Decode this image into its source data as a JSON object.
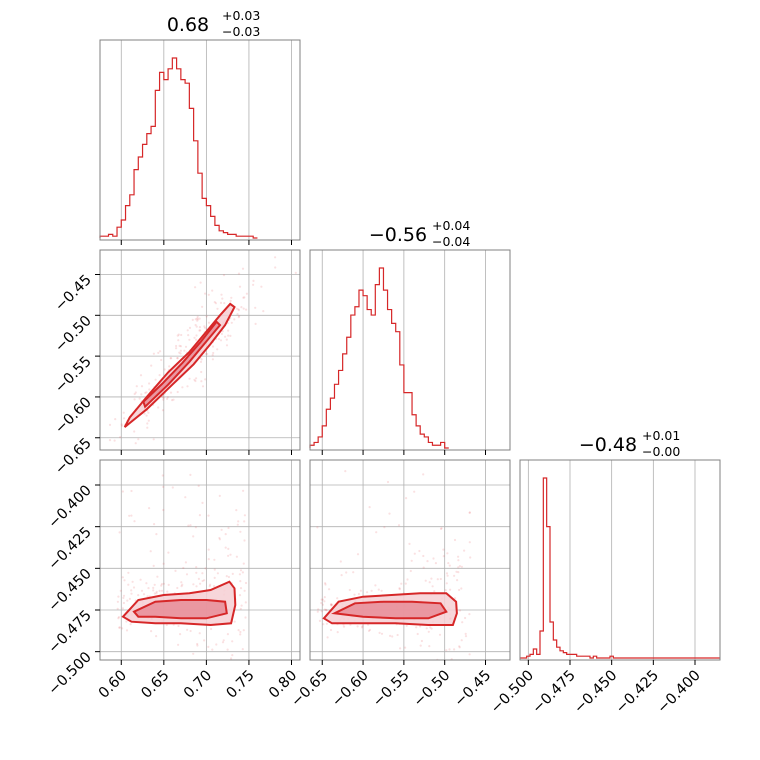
{
  "chart_data": {
    "type": "corner",
    "grid": true,
    "colors": {
      "line": "#d62728",
      "fill_inner": "#e8909a",
      "fill_outer": "#f6cfd4",
      "scatter": "#e3565f",
      "grid": "#b0b0b0",
      "frame": "#808080"
    },
    "parameters": [
      {
        "median": "0.68",
        "plus": "+0.03",
        "minus": "−0.03",
        "ticks": [
          0.6,
          0.65,
          0.7,
          0.75,
          0.8
        ],
        "tick_labels": [
          "0.60",
          "0.65",
          "0.70",
          "0.75",
          "0.80"
        ],
        "range": [
          0.575,
          0.81
        ]
      },
      {
        "median": "−0.56",
        "plus": "+0.04",
        "minus": "−0.04",
        "ticks": [
          -0.65,
          -0.6,
          -0.55,
          -0.5,
          -0.45
        ],
        "tick_labels": [
          "−0.65",
          "−0.60",
          "−0.55",
          "−0.50",
          "−0.45"
        ],
        "range": [
          -0.665,
          -0.42
        ]
      },
      {
        "median": "−0.48",
        "plus": "+0.01",
        "minus": "−0.00",
        "ticks": [
          -0.5,
          -0.475,
          -0.45,
          -0.425,
          -0.4
        ],
        "tick_labels": [
          "−0.500",
          "−0.475",
          "−0.450",
          "−0.425",
          "−0.400"
        ],
        "range": [
          -0.505,
          -0.385
        ]
      }
    ],
    "histograms": [
      {
        "param": 0,
        "edges_start": 0.575,
        "bin_width": 0.005,
        "counts": [
          1,
          1,
          2,
          1,
          6,
          10,
          18,
          24,
          38,
          45,
          52,
          58,
          62,
          82,
          92,
          88,
          94,
          100,
          94,
          88,
          86,
          72,
          54,
          36,
          22,
          18,
          12,
          7,
          4,
          3,
          2,
          2,
          1,
          1,
          1,
          1,
          0
        ]
      },
      {
        "param": 1,
        "edges_start": -0.665,
        "bin_width": 0.005,
        "counts": [
          1,
          2,
          4,
          8,
          14,
          18,
          23,
          28,
          34,
          40,
          48,
          51,
          57,
          55,
          50,
          48,
          59,
          65,
          57,
          50,
          45,
          42,
          30,
          20,
          20,
          12,
          8,
          5,
          4,
          2,
          1,
          1,
          2,
          0
        ]
      },
      {
        "param": 2,
        "edges_start": -0.505,
        "bin_width": 0.002,
        "counts": [
          0,
          0,
          1,
          2,
          5,
          2,
          15,
          100,
          73,
          20,
          10,
          6,
          4,
          3,
          2,
          2,
          2,
          1,
          1,
          1,
          1,
          0,
          1,
          0,
          0,
          0,
          0,
          1,
          0,
          0,
          0,
          0,
          0,
          0,
          0,
          0,
          0,
          0,
          0,
          0,
          0,
          0,
          0,
          0,
          0,
          0,
          0,
          0,
          0,
          0,
          0,
          0,
          0,
          0,
          0,
          0,
          0,
          0,
          0,
          0
        ]
      }
    ],
    "pairs": [
      {
        "x": 0,
        "y": 1,
        "outer": [
          [
            0.604,
            -0.637
          ],
          [
            0.63,
            -0.615
          ],
          [
            0.66,
            -0.585
          ],
          [
            0.685,
            -0.56
          ],
          [
            0.705,
            -0.535
          ],
          [
            0.722,
            -0.512
          ],
          [
            0.733,
            -0.49
          ],
          [
            0.728,
            -0.486
          ],
          [
            0.716,
            -0.5
          ],
          [
            0.7,
            -0.52
          ],
          [
            0.68,
            -0.545
          ],
          [
            0.655,
            -0.57
          ],
          [
            0.63,
            -0.6
          ],
          [
            0.61,
            -0.625
          ]
        ],
        "inner": [
          [
            0.628,
            -0.612
          ],
          [
            0.655,
            -0.585
          ],
          [
            0.68,
            -0.557
          ],
          [
            0.7,
            -0.532
          ],
          [
            0.716,
            -0.512
          ],
          [
            0.712,
            -0.508
          ],
          [
            0.693,
            -0.533
          ],
          [
            0.672,
            -0.558
          ],
          [
            0.648,
            -0.584
          ],
          [
            0.626,
            -0.606
          ]
        ]
      },
      {
        "x": 0,
        "y": 2,
        "outer": [
          [
            0.602,
            -0.479
          ],
          [
            0.62,
            -0.469
          ],
          [
            0.65,
            -0.466
          ],
          [
            0.68,
            -0.465
          ],
          [
            0.705,
            -0.463
          ],
          [
            0.727,
            -0.458
          ],
          [
            0.733,
            -0.462
          ],
          [
            0.734,
            -0.472
          ],
          [
            0.729,
            -0.483
          ],
          [
            0.705,
            -0.484
          ],
          [
            0.67,
            -0.483
          ],
          [
            0.64,
            -0.483
          ],
          [
            0.612,
            -0.482
          ]
        ],
        "inner": [
          [
            0.615,
            -0.476
          ],
          [
            0.64,
            -0.47
          ],
          [
            0.67,
            -0.469
          ],
          [
            0.7,
            -0.469
          ],
          [
            0.722,
            -0.47
          ],
          [
            0.724,
            -0.477
          ],
          [
            0.7,
            -0.48
          ],
          [
            0.67,
            -0.48
          ],
          [
            0.64,
            -0.479
          ],
          [
            0.62,
            -0.479
          ]
        ]
      },
      {
        "x": 1,
        "y": 2,
        "outer": [
          [
            -0.648,
            -0.48
          ],
          [
            -0.63,
            -0.47
          ],
          [
            -0.6,
            -0.467
          ],
          [
            -0.565,
            -0.466
          ],
          [
            -0.53,
            -0.465
          ],
          [
            -0.498,
            -0.465
          ],
          [
            -0.486,
            -0.47
          ],
          [
            -0.485,
            -0.477
          ],
          [
            -0.49,
            -0.484
          ],
          [
            -0.52,
            -0.484
          ],
          [
            -0.56,
            -0.483
          ],
          [
            -0.6,
            -0.483
          ],
          [
            -0.638,
            -0.483
          ]
        ],
        "inner": [
          [
            -0.635,
            -0.477
          ],
          [
            -0.61,
            -0.471
          ],
          [
            -0.575,
            -0.47
          ],
          [
            -0.54,
            -0.47
          ],
          [
            -0.505,
            -0.471
          ],
          [
            -0.498,
            -0.476
          ],
          [
            -0.52,
            -0.48
          ],
          [
            -0.56,
            -0.48
          ],
          [
            -0.6,
            -0.479
          ]
        ]
      }
    ]
  }
}
